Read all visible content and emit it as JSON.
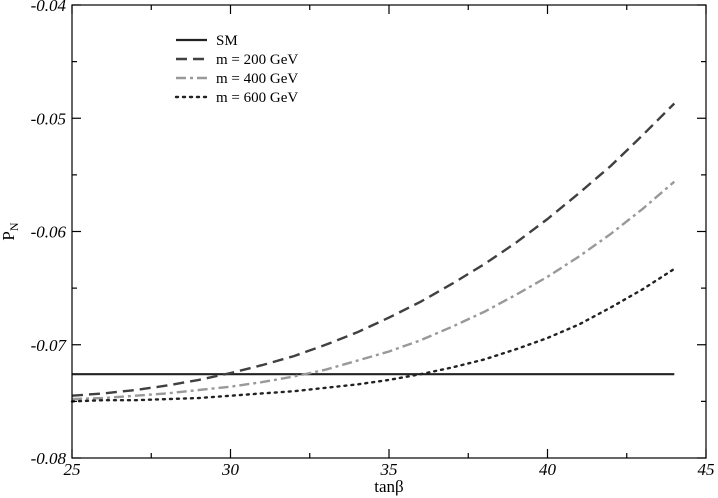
{
  "chart_data": {
    "type": "line",
    "title": "",
    "xlabel": "tanβ",
    "ylabel": "P_N",
    "xlim": [
      25,
      45
    ],
    "ylim": [
      -0.08,
      -0.04
    ],
    "xticks": [
      25,
      30,
      35,
      40,
      45
    ],
    "yticks": [
      -0.08,
      -0.07,
      -0.06,
      -0.05,
      -0.04
    ],
    "xtick_labels": [
      "25",
      "30",
      "35",
      "40",
      "45"
    ],
    "ytick_labels": [
      "-0.08",
      "-0.07",
      "-0.06",
      "-0.05",
      "-0.04"
    ],
    "grid": false,
    "legend_position": "top-left",
    "series": [
      {
        "name": "SM",
        "style": "solid",
        "color": "#222222",
        "x": [
          25,
          44
        ],
        "y": [
          -0.0726,
          -0.0726
        ]
      },
      {
        "name": "m = 200 GeV",
        "style": "dashed",
        "color": "#404040",
        "x": [
          25,
          26,
          27,
          28,
          29,
          30,
          31,
          32,
          33,
          34,
          35,
          36,
          37,
          38,
          39,
          40,
          41,
          42,
          43,
          44
        ],
        "y": [
          -0.0745,
          -0.0743,
          -0.074,
          -0.0736,
          -0.0731,
          -0.0725,
          -0.0718,
          -0.071,
          -0.07,
          -0.0689,
          -0.0676,
          -0.0662,
          -0.0646,
          -0.0629,
          -0.061,
          -0.0589,
          -0.0566,
          -0.0542,
          -0.0515,
          -0.0487
        ]
      },
      {
        "name": "m = 400 GeV",
        "style": "dashdot",
        "color": "#999999",
        "x": [
          25,
          26,
          27,
          28,
          29,
          30,
          31,
          32,
          33,
          34,
          35,
          36,
          37,
          38,
          39,
          40,
          41,
          42,
          43,
          44
        ],
        "y": [
          -0.0748,
          -0.0747,
          -0.0745,
          -0.0743,
          -0.074,
          -0.0737,
          -0.0733,
          -0.0728,
          -0.0722,
          -0.0714,
          -0.0706,
          -0.0696,
          -0.0684,
          -0.0671,
          -0.0656,
          -0.064,
          -0.0622,
          -0.0602,
          -0.058,
          -0.0556
        ]
      },
      {
        "name": "m = 600 GeV",
        "style": "dotted",
        "color": "#222222",
        "x": [
          25,
          26,
          27,
          28,
          29,
          30,
          31,
          32,
          33,
          34,
          35,
          36,
          37,
          38,
          39,
          40,
          41,
          42,
          43,
          44
        ],
        "y": [
          -0.075,
          -0.0749,
          -0.0749,
          -0.0748,
          -0.0747,
          -0.0745,
          -0.0743,
          -0.0741,
          -0.0738,
          -0.0735,
          -0.0731,
          -0.0726,
          -0.072,
          -0.0713,
          -0.0704,
          -0.0694,
          -0.0682,
          -0.0667,
          -0.0651,
          -0.0633
        ]
      }
    ]
  }
}
